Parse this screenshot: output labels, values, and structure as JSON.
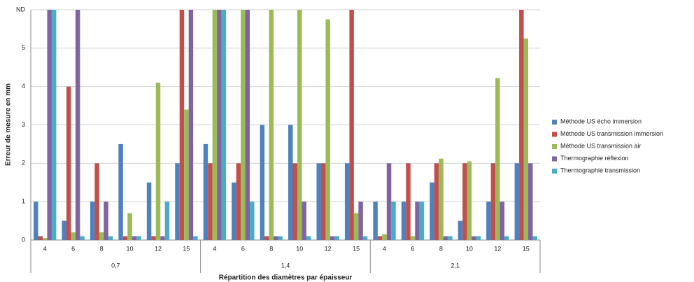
{
  "chart_data": {
    "type": "bar",
    "ylabel": "Erreur de mesure en mm",
    "xlabel": "Répartition des diamètres par épaisseur",
    "categories": [
      "4",
      "6",
      "8",
      "10",
      "12",
      "15",
      "4",
      "6",
      "8",
      "10",
      "12",
      "15",
      "4",
      "6",
      "8",
      "10",
      "12",
      "15"
    ],
    "category_groups": [
      "0,7",
      "1,4",
      "2,1"
    ],
    "ylim": [
      0,
      6
    ],
    "yticks": [
      0,
      1,
      2,
      3,
      4,
      5,
      {
        "value": 6,
        "label": "ND"
      }
    ],
    "grid": true,
    "legend": "right",
    "series": [
      {
        "name": "Méthode US écho immersion",
        "color": "#4f81bd",
        "values": [
          1,
          0.5,
          1,
          2.5,
          1.5,
          2,
          2.5,
          1.5,
          3,
          3,
          2,
          2,
          1,
          1,
          1.5,
          0.5,
          1,
          2
        ]
      },
      {
        "name": "Méthode US transmission immersion",
        "color": "#c0504d",
        "values": [
          0.1,
          4,
          2,
          0.1,
          0.1,
          6,
          2,
          2,
          0.1,
          2,
          2,
          6,
          0.1,
          2,
          2,
          2,
          2,
          6
        ]
      },
      {
        "name": "Méthode US transmission air",
        "color": "#9bbb59",
        "values": [
          0.05,
          0.2,
          0.2,
          0.7,
          4.1,
          3.4,
          6,
          6,
          6,
          6,
          5.75,
          0.7,
          0.15,
          0.1,
          2.12,
          2.05,
          4.22,
          5.25
        ]
      },
      {
        "name": "Thermographie réflexion",
        "color": "#8064a2",
        "values": [
          6,
          6,
          1,
          0.1,
          0.1,
          6,
          6,
          6,
          0.1,
          1,
          0.1,
          1,
          2,
          1,
          0.1,
          0.1,
          1,
          2
        ]
      },
      {
        "name": "Thermographie transmission",
        "color": "#4bacc6",
        "values": [
          6,
          0.1,
          0.1,
          0.1,
          1,
          0.1,
          6,
          1,
          0.1,
          0.1,
          0.1,
          0.1,
          1,
          1,
          0.1,
          0.1,
          0.1,
          0.1
        ]
      }
    ]
  }
}
